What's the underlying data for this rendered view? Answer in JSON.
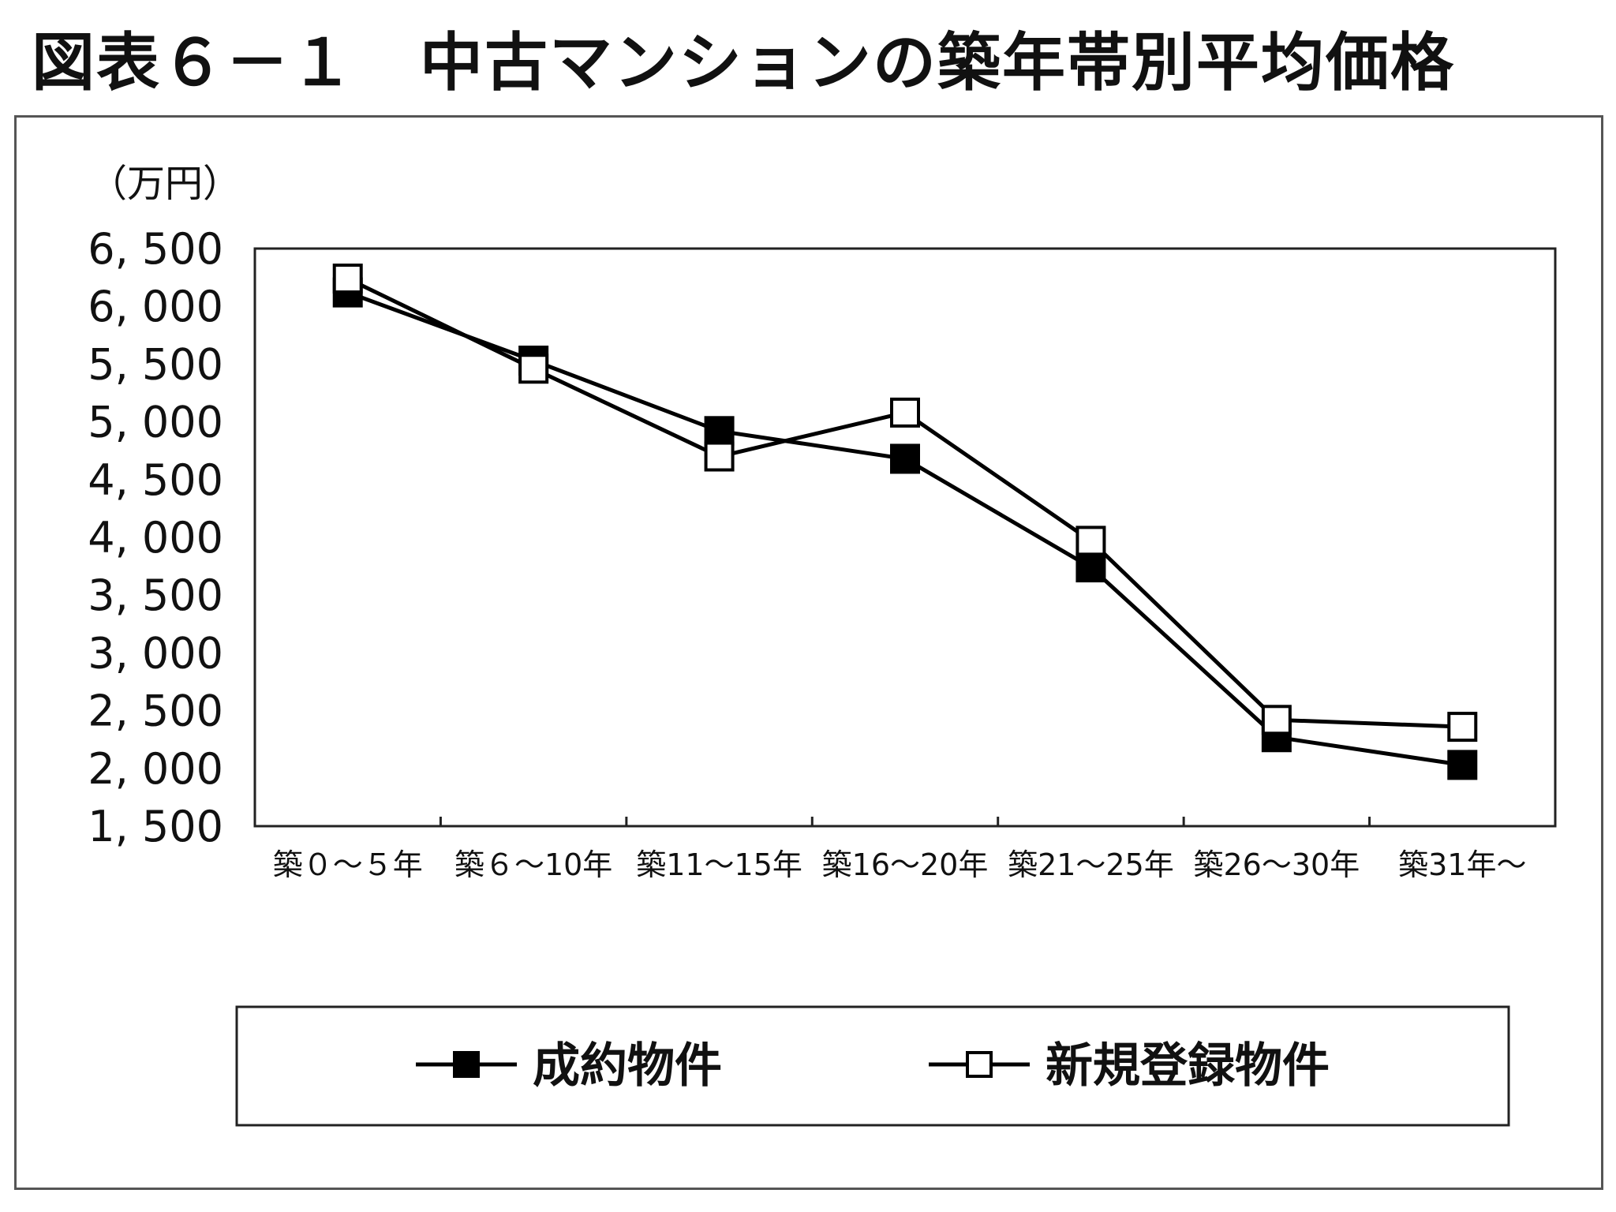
{
  "title": "図表６－１　中古マンションの築年帯別平均価格",
  "chart_data": {
    "type": "line",
    "title": "図表６－１　中古マンションの築年帯別平均価格",
    "unit_label": "（万円）",
    "xlabel": "",
    "ylabel": "",
    "categories": [
      "築０～５年",
      "築６～10年",
      "築11～15年",
      "築16～20年",
      "築21～25年",
      "築26～30年",
      "築31年～"
    ],
    "ylim": [
      1500,
      6500
    ],
    "yticks": [
      6500,
      6000,
      5500,
      5000,
      4500,
      4000,
      3500,
      3000,
      2500,
      2000,
      1500
    ],
    "ytick_labels": [
      "6, 500",
      "6, 000",
      "5, 500",
      "5, 000",
      "4, 500",
      "4, 000",
      "3, 500",
      "3, 000",
      "2, 500",
      "2, 000",
      "1, 500"
    ],
    "grid": false,
    "legend_position": "bottom",
    "series": [
      {
        "name": "成約物件",
        "marker": "filled-square",
        "color": "#000000",
        "values": [
          6120,
          5530,
          4920,
          4680,
          3740,
          2270,
          2030
        ]
      },
      {
        "name": "新規登録物件",
        "marker": "open-square",
        "color": "#000000",
        "values": [
          6240,
          5460,
          4700,
          5080,
          3970,
          2420,
          2360
        ]
      }
    ]
  }
}
